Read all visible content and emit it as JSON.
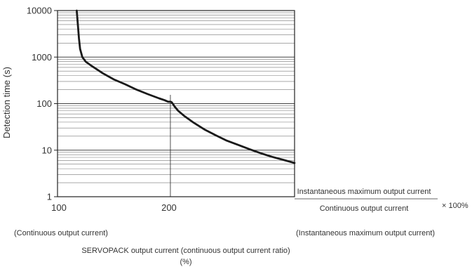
{
  "chart_data": {
    "type": "line",
    "title": "",
    "ylabel": "Detection time (s)",
    "xlabel": "SERVOPACK output current (continuous output current ratio)",
    "xlabel_unit": "(%)",
    "y_scale": "log",
    "ylim": [
      1,
      10000
    ],
    "y_ticks": [
      {
        "value": 1,
        "label": "1"
      },
      {
        "value": 10,
        "label": "10"
      },
      {
        "value": 100,
        "label": "100"
      },
      {
        "value": 1000,
        "label": "1000"
      },
      {
        "value": 10000,
        "label": "10000"
      }
    ],
    "xlim": [
      100,
      310
    ],
    "x_ticks": [
      {
        "value": 100,
        "label": "100"
      },
      {
        "value": 200,
        "label": "200"
      }
    ],
    "grid": true,
    "x_left_note": "(Continuous output current)",
    "x_right_note": "(Instantaneous maximum output current)",
    "ratio_formula": {
      "numerator": "Instantaneous maximum output current",
      "denominator": "Continuous output current",
      "multiplier": "× 100%"
    },
    "guide_line_x": 200,
    "series": [
      {
        "color": "#1a1a1a",
        "points": [
          [
            117,
            10000
          ],
          [
            118,
            5000
          ],
          [
            119,
            2500
          ],
          [
            120,
            1500
          ],
          [
            122,
            1000
          ],
          [
            125,
            800
          ],
          [
            130,
            650
          ],
          [
            140,
            450
          ],
          [
            150,
            330
          ],
          [
            160,
            260
          ],
          [
            170,
            200
          ],
          [
            180,
            160
          ],
          [
            190,
            130
          ],
          [
            195,
            118
          ],
          [
            198,
            110
          ],
          [
            200,
            110
          ],
          [
            201,
            108
          ],
          [
            202,
            100
          ],
          [
            204,
            85
          ],
          [
            207,
            70
          ],
          [
            212,
            55
          ],
          [
            220,
            40
          ],
          [
            230,
            28
          ],
          [
            240,
            21
          ],
          [
            250,
            16
          ],
          [
            260,
            13
          ],
          [
            270,
            10.5
          ],
          [
            280,
            8.6
          ],
          [
            290,
            7.2
          ],
          [
            300,
            6.2
          ],
          [
            310,
            5.3
          ]
        ]
      }
    ]
  }
}
